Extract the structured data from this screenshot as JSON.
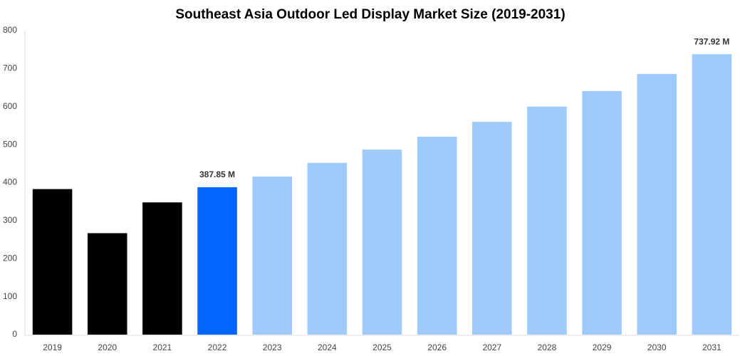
{
  "chart_data": {
    "type": "bar",
    "title": "Southeast Asia Outdoor Led Display Market Size (2019-2031)",
    "categories": [
      "2019",
      "2020",
      "2021",
      "2022",
      "2023",
      "2024",
      "2025",
      "2026",
      "2027",
      "2028",
      "2029",
      "2030",
      "2031"
    ],
    "values": [
      383,
      267,
      348,
      387.85,
      416,
      452,
      487,
      521,
      560,
      600,
      641,
      686,
      737.92
    ],
    "value_labels": [
      null,
      null,
      null,
      "387.85 M",
      null,
      null,
      null,
      null,
      null,
      null,
      null,
      null,
      "737.92 M"
    ],
    "colors": [
      "#000000",
      "#000000",
      "#000000",
      "#0066ff",
      "#9ecbfc",
      "#9ecbfc",
      "#9ecbfc",
      "#9ecbfc",
      "#9ecbfc",
      "#9ecbfc",
      "#9ecbfc",
      "#9ecbfc",
      "#9ecbfc"
    ],
    "ylim": [
      0,
      800
    ],
    "yticks": [
      0,
      100,
      200,
      300,
      400,
      500,
      600,
      700,
      800
    ],
    "grid": false
  }
}
